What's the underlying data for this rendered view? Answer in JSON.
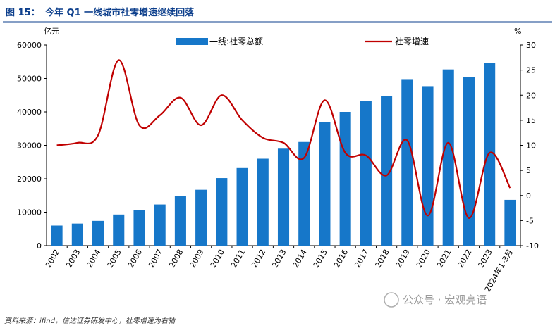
{
  "header": {
    "figure_label": "图 15：",
    "title": "今年 Q1 一线城市社零增速继续回落"
  },
  "source_note": "资料来源：ifind，信达证券研发中心，社零增速为右轴",
  "watermark": "公众号 · 宏观亮语",
  "colors": {
    "bar": "#1677c9",
    "line": "#c00000",
    "title": "#0d3f8c"
  },
  "chart_data": {
    "type": "bar",
    "categories": [
      "2002",
      "2003",
      "2004",
      "2005",
      "2006",
      "2007",
      "2008",
      "2009",
      "2010",
      "2011",
      "2012",
      "2013",
      "2014",
      "2015",
      "2016",
      "2017",
      "2018",
      "2019",
      "2020",
      "2021",
      "2022",
      "2023",
      "2024年1-3月"
    ],
    "y_left_label": "亿元",
    "y_right_label": "%",
    "ylim_left": [
      0,
      60000
    ],
    "ylim_right": [
      -10,
      30
    ],
    "yticks_left": [
      0,
      10000,
      20000,
      30000,
      40000,
      50000,
      60000
    ],
    "yticks_right": [
      -10,
      -5,
      0,
      5,
      10,
      15,
      20,
      25,
      30
    ],
    "legend_position": "top",
    "series": [
      {
        "name": "一线:社零总额",
        "kind": "bar",
        "axis": "left",
        "values": [
          6000,
          6600,
          7400,
          9300,
          10700,
          12300,
          14800,
          16700,
          20200,
          23200,
          26000,
          29000,
          31000,
          37000,
          40000,
          43200,
          44800,
          49800,
          47700,
          52700,
          50400,
          54700,
          13700
        ]
      },
      {
        "name": "社零增速",
        "kind": "line",
        "axis": "right",
        "values": [
          10,
          10.5,
          12,
          27,
          14,
          16,
          19.5,
          14,
          20,
          15,
          11.5,
          10.5,
          7.5,
          19,
          8.5,
          8,
          4,
          11,
          -4,
          10.5,
          -4.5,
          8.5,
          1.5
        ]
      }
    ]
  }
}
